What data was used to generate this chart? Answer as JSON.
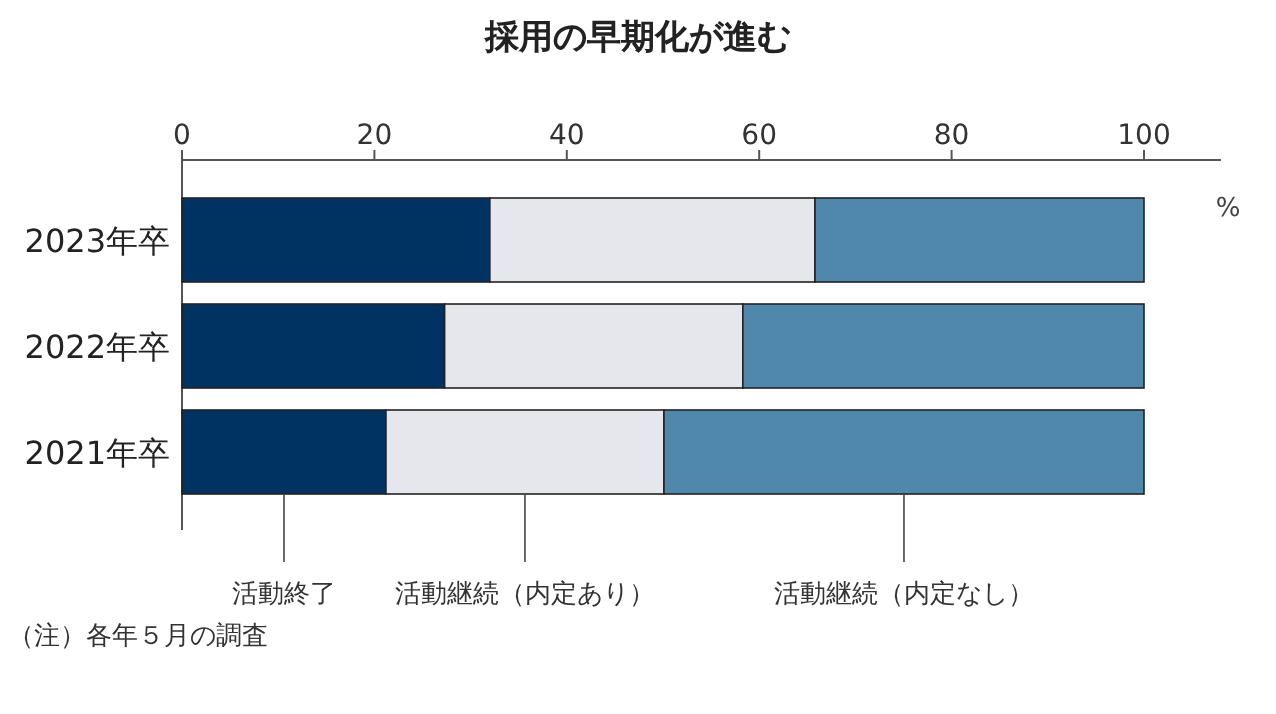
{
  "chart_data": {
    "type": "bar",
    "orientation": "horizontal",
    "stacked": true,
    "title": "採用の早期化が進む",
    "xlabel": "%",
    "categories": [
      "2023年卒",
      "2022年卒",
      "2021年卒"
    ],
    "series": [
      {
        "name": "活動終了",
        "color": "#003361",
        "values": [
          32.0,
          27.3,
          21.2
        ]
      },
      {
        "name": "活動継続（内定あり）",
        "color": "#e6e7ec",
        "values": [
          33.8,
          31.0,
          28.9
        ]
      },
      {
        "name": "活動継続（内定なし）",
        "color": "#5087ad",
        "values": [
          34.2,
          41.7,
          49.9
        ]
      }
    ],
    "xlim": [
      0,
      108
    ],
    "xticks": [
      0,
      20,
      40,
      60,
      80,
      100
    ],
    "legend": "bottom",
    "annotations": [
      "（注）各年５月の調査"
    ]
  }
}
